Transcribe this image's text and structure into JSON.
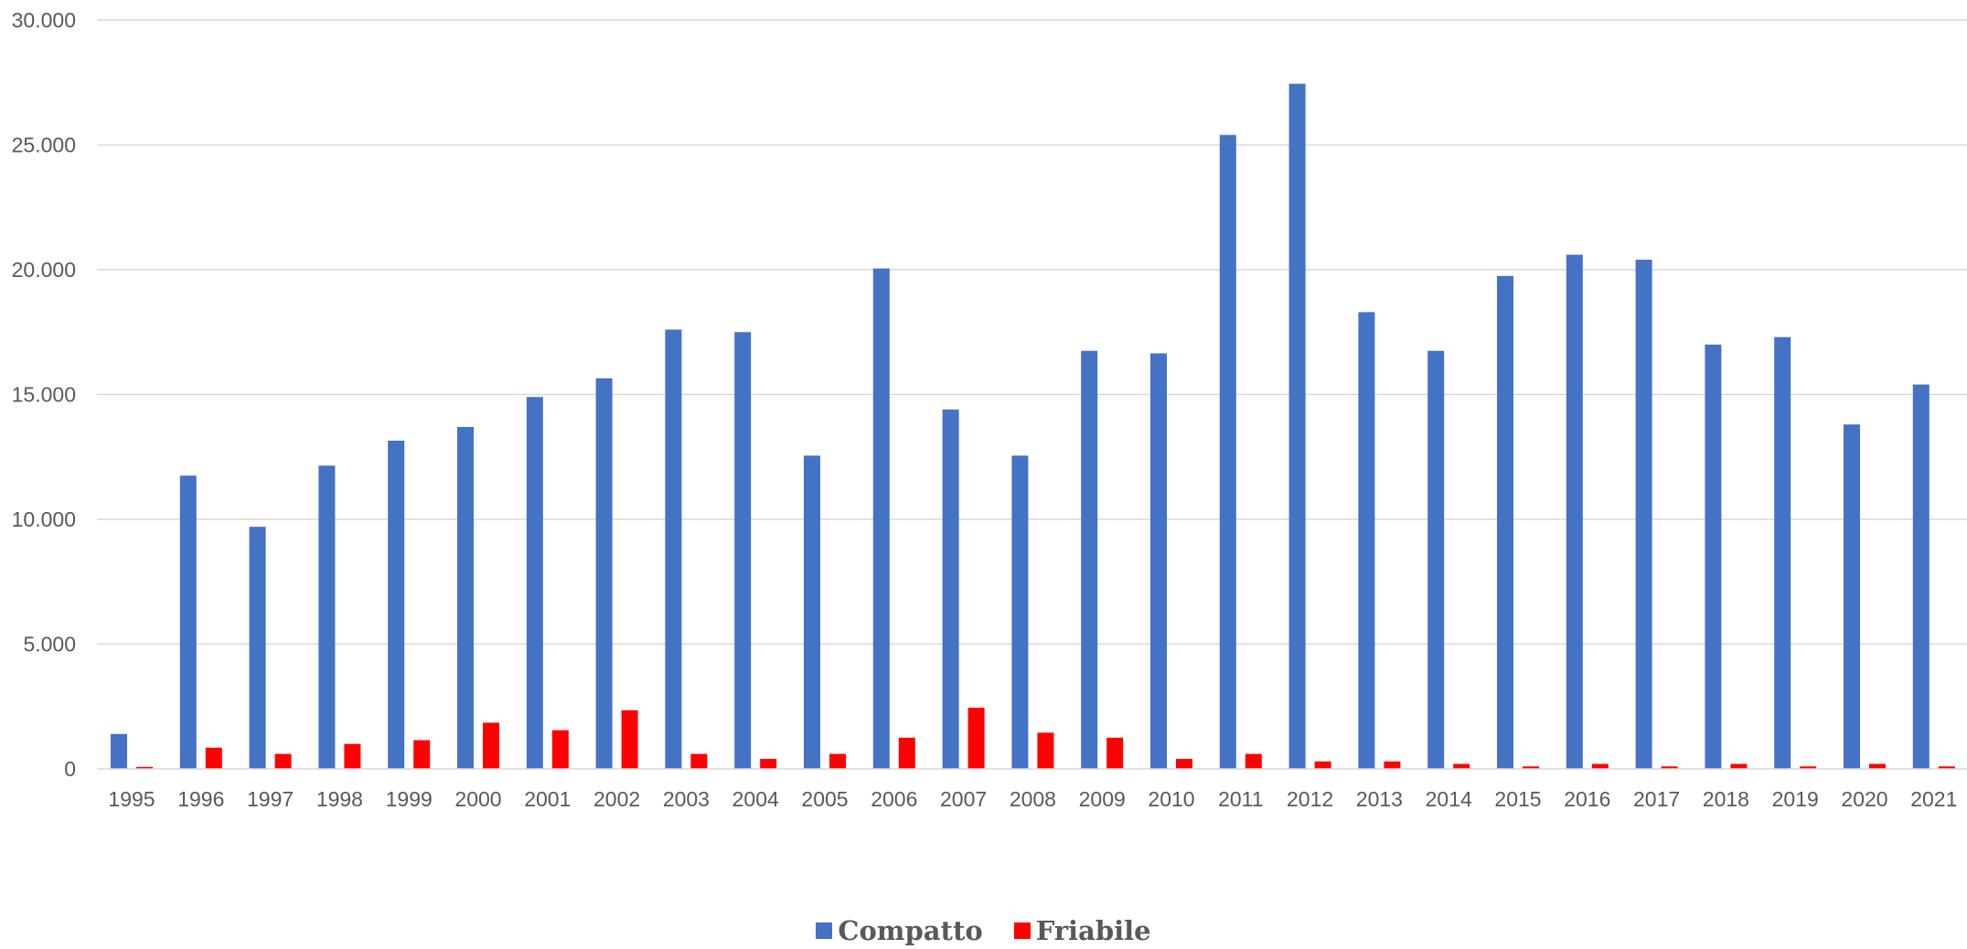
{
  "chart_data": {
    "type": "bar",
    "categories": [
      "1995",
      "1996",
      "1997",
      "1998",
      "1999",
      "2000",
      "2001",
      "2002",
      "2003",
      "2004",
      "2005",
      "2006",
      "2007",
      "2008",
      "2009",
      "2010",
      "2011",
      "2012",
      "2013",
      "2014",
      "2015",
      "2016",
      "2017",
      "2018",
      "2019",
      "2020",
      "2021"
    ],
    "series": [
      {
        "name": "Compatto",
        "color": "#4472C4",
        "values": [
          1400,
          11750,
          9700,
          12150,
          13150,
          13700,
          14900,
          15650,
          17600,
          17500,
          12550,
          20050,
          14400,
          12550,
          16750,
          16650,
          25400,
          27450,
          18300,
          16750,
          19750,
          20600,
          20400,
          17000,
          17300,
          13800,
          15400
        ]
      },
      {
        "name": "Friabile",
        "color": "#FF0000",
        "values": [
          80,
          850,
          600,
          1000,
          1150,
          1850,
          1550,
          2350,
          600,
          400,
          600,
          1250,
          2450,
          1450,
          1250,
          400,
          600,
          300,
          300,
          200,
          100,
          200,
          100,
          200,
          100,
          200,
          100
        ]
      }
    ],
    "title": "",
    "xlabel": "",
    "ylabel": "",
    "ylim": [
      0,
      30000
    ],
    "yticks": [
      0,
      5000,
      10000,
      15000,
      20000,
      25000,
      30000
    ],
    "ytick_labels": [
      "0",
      "5.000",
      "10.000",
      "15.000",
      "20.000",
      "25.000",
      "30.000"
    ],
    "grid": true,
    "legend_position": "bottom"
  }
}
